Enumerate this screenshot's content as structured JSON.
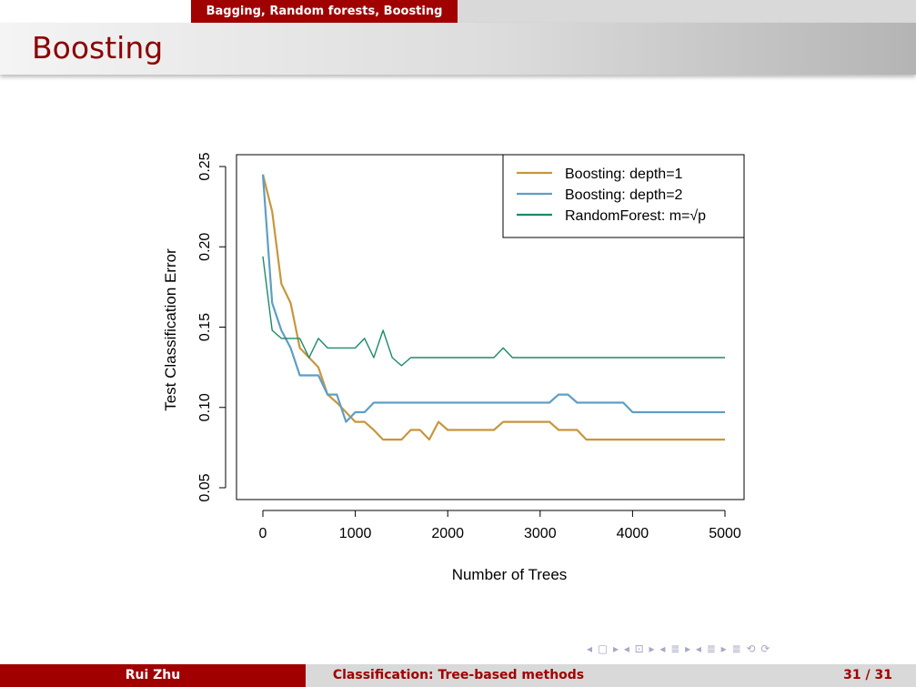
{
  "header": {
    "section": "Bagging, Random forests, Boosting",
    "title": "Boosting"
  },
  "footer": {
    "author": "Rui Zhu",
    "title": "Classification: Tree-based methods",
    "page": "31 / 31"
  },
  "nav_symbols": "◂ ▢ ▸ ◂ ⊡ ▸ ◂ ≣ ▸ ◂ ≣ ▸   ≣   ⟲ ⟳",
  "chart_data": {
    "type": "line",
    "xlabel": "Number of Trees",
    "ylabel": "Test Classification Error",
    "xlim": [
      0,
      5000
    ],
    "ylim": [
      0.05,
      0.25
    ],
    "xticks": [
      0,
      1000,
      2000,
      3000,
      4000,
      5000
    ],
    "yticks": [
      0.05,
      0.1,
      0.15,
      0.2,
      0.25
    ],
    "xtick_labels": [
      "0",
      "1000",
      "2000",
      "3000",
      "4000",
      "5000"
    ],
    "ytick_labels": [
      "0.05",
      "0.10",
      "0.15",
      "0.20",
      "0.25"
    ],
    "grid": false,
    "legend_position": "top-right",
    "series": [
      {
        "name": "Boosting: depth=1",
        "color": "#c8963e",
        "x": [
          0,
          100,
          200,
          300,
          400,
          500,
          600,
          700,
          800,
          900,
          1000,
          1100,
          1200,
          1300,
          1400,
          1500,
          1600,
          1700,
          1800,
          1900,
          2000,
          2500,
          2600,
          3100,
          3200,
          3400,
          3500,
          5000
        ],
        "y": [
          0.245,
          0.222,
          0.177,
          0.165,
          0.137,
          0.131,
          0.125,
          0.108,
          0.103,
          0.097,
          0.091,
          0.091,
          0.086,
          0.08,
          0.08,
          0.08,
          0.086,
          0.086,
          0.08,
          0.091,
          0.086,
          0.086,
          0.091,
          0.091,
          0.086,
          0.086,
          0.08,
          0.08
        ]
      },
      {
        "name": "Boosting: depth=2",
        "color": "#5f9ec4",
        "x": [
          0,
          100,
          200,
          300,
          400,
          500,
          600,
          700,
          800,
          900,
          1000,
          1100,
          1200,
          2000,
          3100,
          3200,
          3300,
          3400,
          3900,
          4000,
          5000
        ],
        "y": [
          0.245,
          0.165,
          0.148,
          0.137,
          0.12,
          0.12,
          0.12,
          0.108,
          0.108,
          0.091,
          0.097,
          0.097,
          0.103,
          0.103,
          0.103,
          0.108,
          0.108,
          0.103,
          0.103,
          0.097,
          0.097
        ]
      },
      {
        "name": "RandomForest: m=√p",
        "color": "#1b8a6b",
        "x": [
          0,
          100,
          200,
          300,
          400,
          500,
          600,
          700,
          800,
          900,
          1000,
          1100,
          1200,
          1300,
          1400,
          1500,
          1600,
          1700,
          2500,
          2600,
          2700,
          5000
        ],
        "y": [
          0.194,
          0.148,
          0.143,
          0.143,
          0.143,
          0.131,
          0.143,
          0.137,
          0.137,
          0.137,
          0.137,
          0.143,
          0.131,
          0.148,
          0.131,
          0.126,
          0.131,
          0.131,
          0.131,
          0.137,
          0.131,
          0.131
        ]
      }
    ]
  }
}
